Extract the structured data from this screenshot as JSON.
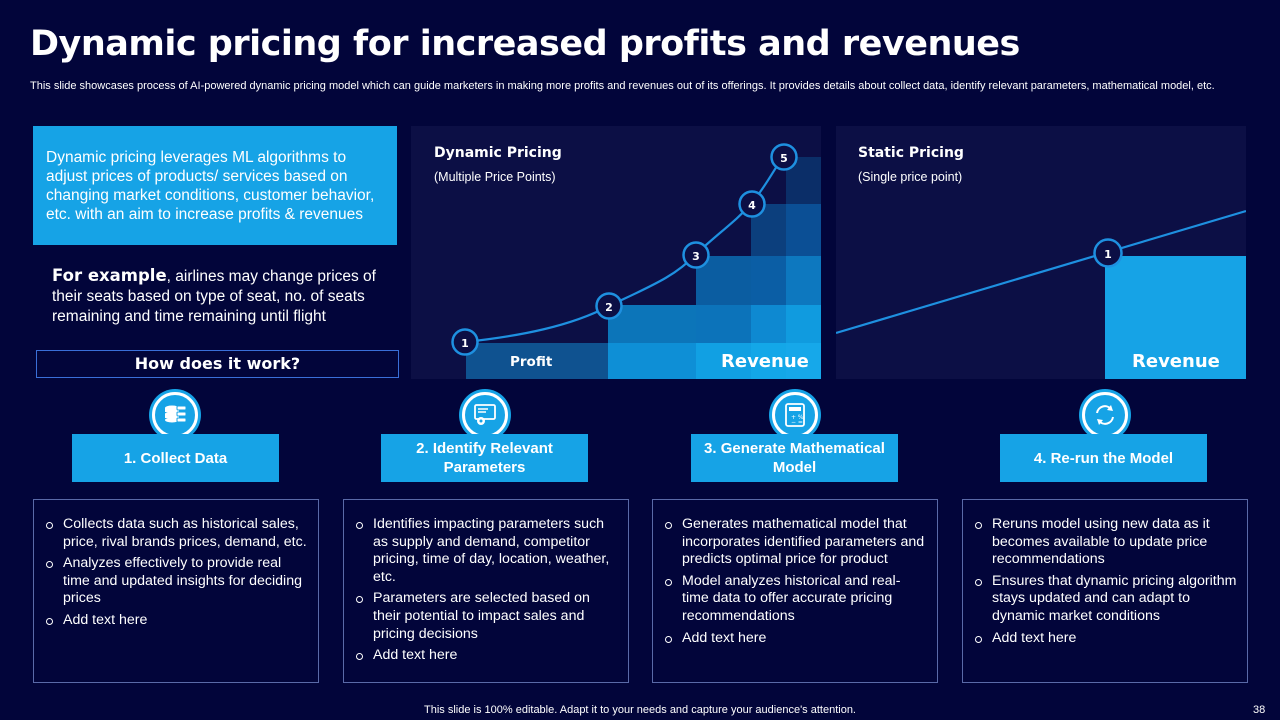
{
  "title": "Dynamic pricing for increased profits and revenues",
  "subtitle": "This slide showcases process of AI-powered dynamic pricing model which can guide marketers in making more profits and revenues out of its offerings. It provides details about collect data, identify relevant parameters, mathematical model, etc.",
  "intro_text": "Dynamic pricing leverages ML algorithms to adjust prices of products/ services based on changing market conditions, customer behavior, etc. with an aim to increase profits & revenues",
  "example": {
    "lead": "For example",
    "text": ", airlines may change prices of their seats based on type of seat, no. of seats remaining and time remaining until flight"
  },
  "how_label": "How does it work?",
  "dynamic_panel": {
    "title": "Dynamic Pricing",
    "subtitle": "(Multiple Price Points)",
    "profit_label": "Profit",
    "revenue_label": "Revenue",
    "points": [
      "1",
      "2",
      "3",
      "4",
      "5"
    ]
  },
  "static_panel": {
    "title": "Static Pricing",
    "subtitle": "(Single price point)",
    "revenue_label": "Revenue",
    "point": "1"
  },
  "steps": [
    {
      "icon": "database-icon",
      "label": "1. Collect Data",
      "bullets": [
        "Collects data such as historical sales, price, rival brands prices, demand, etc.",
        "Analyzes effectively to provide real time and updated insights for deciding prices",
        "Add text here"
      ]
    },
    {
      "icon": "settings-monitor-icon",
      "label": "2. Identify Relevant Parameters",
      "bullets": [
        "Identifies impacting parameters such as supply and demand, competitor pricing, time of day, location, weather, etc.",
        "Parameters are selected based on their potential to impact sales and pricing decisions",
        "Add text here"
      ]
    },
    {
      "icon": "calculator-icon",
      "label": "3. Generate Mathematical Model",
      "bullets": [
        "Generates mathematical model that incorporates identified parameters and predicts optimal price for product",
        "Model analyzes historical and real-time data to offer accurate pricing recommendations",
        "Add text here"
      ]
    },
    {
      "icon": "refresh-icon",
      "label": "4. Re-run the Model",
      "bullets": [
        "Reruns model using new data as it becomes available to update price recommendations",
        "Ensures that dynamic pricing algorithm stays updated and can adapt to dynamic market conditions",
        "Add text here"
      ]
    }
  ],
  "footer": "This slide is 100% editable. Adapt it to your needs and capture your audience's attention.",
  "page_number": "38",
  "colors": {
    "background": "#02053a",
    "accent": "#16a3e6",
    "panel": "#0c0f45"
  }
}
